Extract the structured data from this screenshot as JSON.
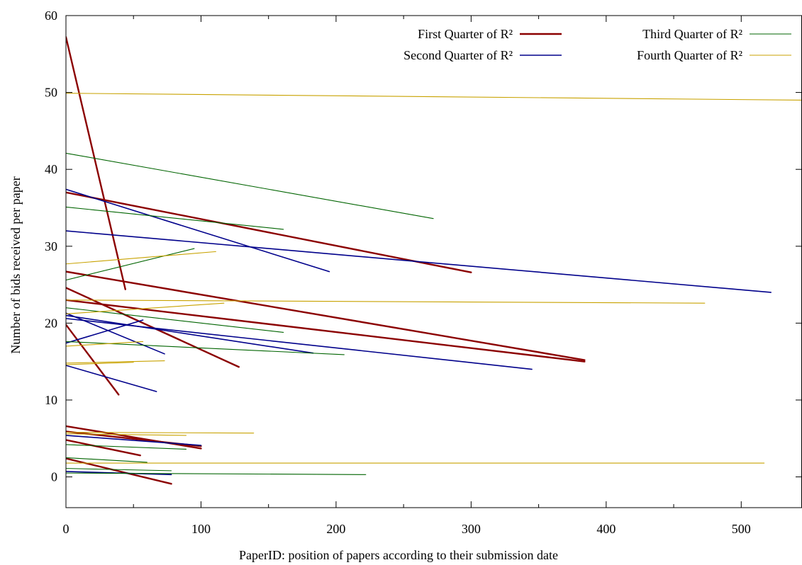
{
  "chart_data": {
    "type": "line",
    "title": "",
    "xlabel": "PaperID: position of papers according to their submission date",
    "ylabel": "Number of bids received per paper",
    "xlim": [
      0,
      545
    ],
    "ylim": [
      -4,
      60
    ],
    "xticks": [
      0,
      100,
      200,
      300,
      400,
      500
    ],
    "yticks": [
      0,
      10,
      20,
      30,
      40,
      50,
      60
    ],
    "grid": false,
    "legend_position": "top-right",
    "series": [
      {
        "name": "First Quarter of R²",
        "color": "#8b0000",
        "segments": [
          [
            [
              0,
              57.2
            ],
            [
              44,
              24.4
            ]
          ],
          [
            [
              0,
              37.0
            ],
            [
              300,
              26.6
            ]
          ],
          [
            [
              0,
              26.7
            ],
            [
              384,
              15.2
            ]
          ],
          [
            [
              0,
              24.6
            ],
            [
              128,
              14.3
            ]
          ],
          [
            [
              0,
              23.0
            ],
            [
              384,
              15.0
            ]
          ],
          [
            [
              0,
              19.8
            ],
            [
              39,
              10.7
            ]
          ],
          [
            [
              0,
              6.6
            ],
            [
              100,
              3.7
            ]
          ],
          [
            [
              0,
              5.9
            ],
            [
              100,
              4.0
            ]
          ],
          [
            [
              0,
              4.8
            ],
            [
              55,
              2.8
            ]
          ],
          [
            [
              0,
              2.4
            ],
            [
              78,
              -0.9
            ]
          ]
        ]
      },
      {
        "name": "Second Quarter of R²",
        "color": "#00008b",
        "segments": [
          [
            [
              0,
              37.4
            ],
            [
              195,
              26.7
            ]
          ],
          [
            [
              0,
              32.0
            ],
            [
              522,
              24.0
            ]
          ],
          [
            [
              0,
              21.3
            ],
            [
              73,
              16.0
            ]
          ],
          [
            [
              0,
              21.0
            ],
            [
              183,
              16.1
            ]
          ],
          [
            [
              0,
              17.4
            ],
            [
              57,
              20.4
            ]
          ],
          [
            [
              0,
              20.6
            ],
            [
              345,
              14.0
            ]
          ],
          [
            [
              0,
              14.5
            ],
            [
              67,
              11.1
            ]
          ],
          [
            [
              0,
              5.4
            ],
            [
              100,
              4.1
            ]
          ],
          [
            [
              0,
              0.7
            ],
            [
              78,
              0.3
            ]
          ]
        ]
      },
      {
        "name": "Third Quarter of R²",
        "color": "#006400",
        "segments": [
          [
            [
              0,
              42.1
            ],
            [
              272,
              33.6
            ]
          ],
          [
            [
              0,
              35.1
            ],
            [
              161,
              32.2
            ]
          ],
          [
            [
              0,
              25.6
            ],
            [
              95,
              29.7
            ]
          ],
          [
            [
              0,
              22.0
            ],
            [
              161,
              18.8
            ]
          ],
          [
            [
              0,
              17.6
            ],
            [
              206,
              15.9
            ]
          ],
          [
            [
              0,
              4.2
            ],
            [
              89,
              3.6
            ]
          ],
          [
            [
              0,
              2.5
            ],
            [
              60,
              1.9
            ]
          ],
          [
            [
              0,
              1.1
            ],
            [
              78,
              0.8
            ]
          ],
          [
            [
              0,
              0.5
            ],
            [
              222,
              0.3
            ]
          ]
        ]
      },
      {
        "name": "Fourth Quarter of R²",
        "color": "#c8a200",
        "segments": [
          [
            [
              0,
              49.9
            ],
            [
              545,
              49.0
            ]
          ],
          [
            [
              0,
              27.7
            ],
            [
              111,
              29.3
            ]
          ],
          [
            [
              0,
              23.0
            ],
            [
              473,
              22.6
            ]
          ],
          [
            [
              0,
              21.2
            ],
            [
              117,
              22.6
            ]
          ],
          [
            [
              0,
              17.0
            ],
            [
              57,
              17.6
            ]
          ],
          [
            [
              0,
              14.8
            ],
            [
              73,
              15.1
            ]
          ],
          [
            [
              0,
              14.6
            ],
            [
              50,
              14.9
            ]
          ],
          [
            [
              0,
              5.8
            ],
            [
              139,
              5.7
            ]
          ],
          [
            [
              0,
              5.6
            ],
            [
              89,
              5.4
            ]
          ],
          [
            [
              0,
              1.8
            ],
            [
              517,
              1.8
            ]
          ]
        ]
      }
    ]
  }
}
